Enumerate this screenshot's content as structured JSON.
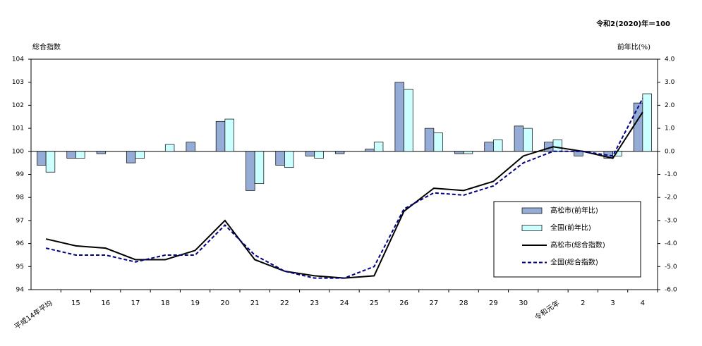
{
  "chart_data": {
    "type": "bar",
    "note": "令和2(2020)年＝100",
    "y_label": "総合指数",
    "y2_label": "前年比(%)",
    "categories": [
      "平成14年平均",
      "15",
      "16",
      "17",
      "18",
      "19",
      "20",
      "21",
      "22",
      "23",
      "24",
      "25",
      "26",
      "27",
      "28",
      "29",
      "30",
      "令和元年",
      "2",
      "3",
      "4"
    ],
    "series": [
      {
        "name": "高松市(前年比)",
        "type": "bar",
        "axis": "y2",
        "color": "#94acd6",
        "values": [
          -0.6,
          -0.3,
          -0.1,
          -0.5,
          0.0,
          0.4,
          1.3,
          -1.7,
          -0.6,
          -0.2,
          -0.1,
          0.1,
          3.0,
          1.0,
          -0.1,
          0.4,
          1.1,
          0.4,
          -0.2,
          -0.3,
          2.1
        ]
      },
      {
        "name": "全国(前年比)",
        "type": "bar",
        "axis": "y2",
        "color": "#ccffff",
        "values": [
          -0.9,
          -0.3,
          0.0,
          -0.3,
          0.3,
          0.0,
          1.4,
          -1.4,
          -0.7,
          -0.3,
          0.0,
          0.4,
          2.7,
          0.8,
          -0.1,
          0.5,
          1.0,
          0.5,
          0.0,
          -0.2,
          2.5
        ]
      },
      {
        "name": "高松市(総合指数)",
        "type": "line",
        "axis": "y",
        "color": "#000000",
        "dashed": false,
        "values": [
          96.2,
          95.9,
          95.8,
          95.3,
          95.3,
          95.7,
          97.0,
          95.3,
          94.8,
          94.6,
          94.5,
          94.6,
          97.4,
          98.4,
          98.3,
          98.7,
          99.8,
          100.2,
          100.0,
          99.7,
          101.7
        ]
      },
      {
        "name": "全国(総合指数)",
        "type": "line",
        "axis": "y",
        "color": "#000080",
        "dashed": true,
        "values": [
          95.8,
          95.5,
          95.5,
          95.2,
          95.5,
          95.5,
          96.8,
          95.5,
          94.8,
          94.5,
          94.5,
          95.0,
          97.5,
          98.2,
          98.1,
          98.5,
          99.5,
          100.0,
          100.0,
          99.8,
          102.3
        ]
      }
    ],
    "ylim": [
      94,
      104
    ],
    "yticks": [
      94,
      95,
      96,
      97,
      98,
      99,
      100,
      101,
      102,
      103,
      104
    ],
    "y2lim": [
      -6,
      4
    ],
    "y2ticks": [
      {
        "value": -6,
        "label": "-6.0"
      },
      {
        "value": -5,
        "label": "-5.0"
      },
      {
        "value": -4,
        "label": "-4.0"
      },
      {
        "value": -3,
        "label": "-3.0"
      },
      {
        "value": -2,
        "label": "-2.0"
      },
      {
        "value": -1,
        "label": "-1.0"
      },
      {
        "value": 0,
        "label": "0.0"
      },
      {
        "value": 1,
        "label": "1.0"
      },
      {
        "value": 2,
        "label": "2.0"
      },
      {
        "value": 3,
        "label": "3.0"
      },
      {
        "value": 4,
        "label": "4.0"
      }
    ],
    "legend": "lower-right"
  }
}
